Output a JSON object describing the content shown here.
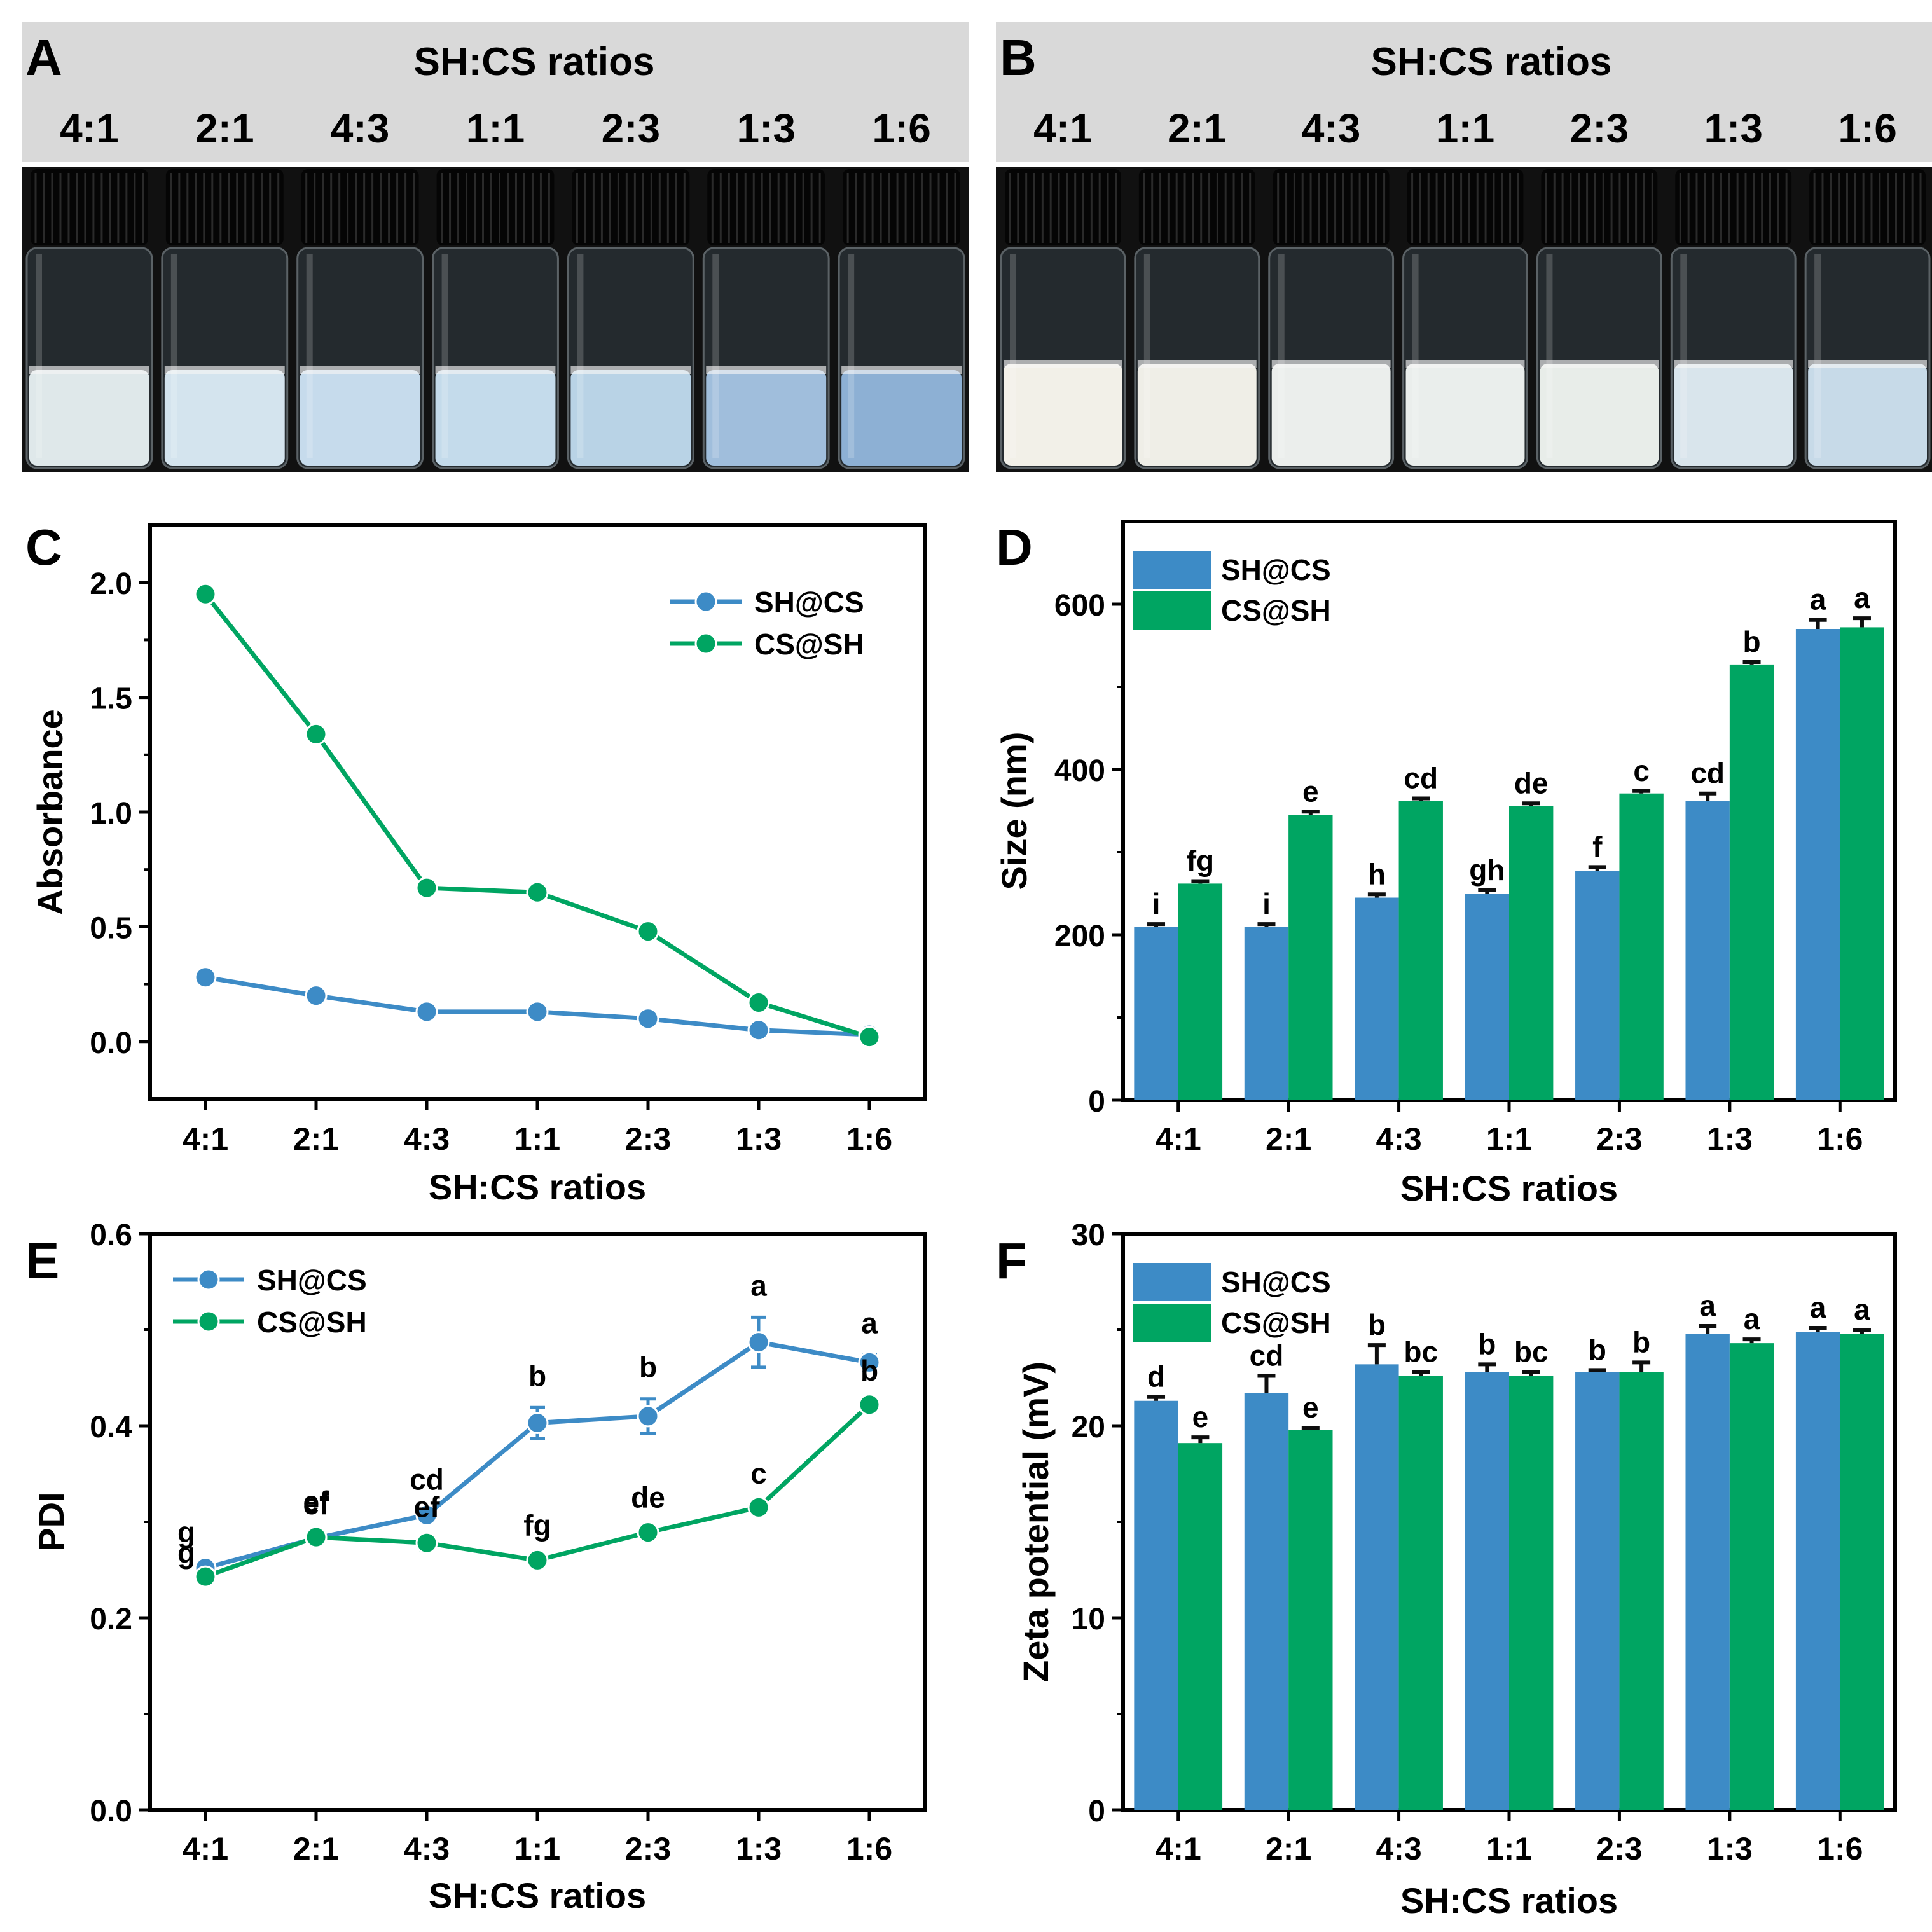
{
  "colors": {
    "sh_cs": "#3d8bc6",
    "cs_sh": "#00a562",
    "header_bg": "#d9d9d9",
    "axis": "#000000",
    "cap": "#0e0e0e"
  },
  "photo_panels": [
    {
      "letter": "A",
      "title": "SH:CS ratios",
      "ratios": [
        "4:1",
        "2:1",
        "4:3",
        "1:1",
        "2:3",
        "1:3",
        "1:6"
      ],
      "liquid_colors": [
        "#dfe8ea",
        "#d4e4ee",
        "#c6dbec",
        "#c4dbeb",
        "#b9d3e6",
        "#a0bedc",
        "#8db0d4"
      ]
    },
    {
      "letter": "B",
      "title": "SH:CS ratios",
      "ratios": [
        "4:1",
        "2:1",
        "4:3",
        "1:1",
        "2:3",
        "1:3",
        "1:6"
      ],
      "liquid_colors": [
        "#f2f0e8",
        "#efeee7",
        "#ebeeec",
        "#eaeeec",
        "#e8ede9",
        "#d9e5ec",
        "#c7dae8"
      ]
    }
  ],
  "chart_data": [
    {
      "panel": "C",
      "type": "line",
      "categories": [
        "4:1",
        "2:1",
        "4:3",
        "1:1",
        "2:3",
        "1:3",
        "1:6"
      ],
      "series": [
        {
          "name": "SH@CS",
          "values": [
            0.28,
            0.2,
            0.13,
            0.13,
            0.1,
            0.05,
            0.03
          ]
        },
        {
          "name": "CS@SH",
          "values": [
            1.95,
            1.34,
            0.67,
            0.65,
            0.48,
            0.17,
            0.02
          ]
        }
      ],
      "xlabel": "SH:CS ratios",
      "ylabel": "Absorbance",
      "ylim": [
        -0.25,
        2.25
      ],
      "yticks": [
        "0.0",
        "0.5",
        "1.0",
        "1.5",
        "2.0"
      ],
      "legend_position": "top-right"
    },
    {
      "panel": "D",
      "type": "bar",
      "categories": [
        "4:1",
        "2:1",
        "4:3",
        "1:1",
        "2:3",
        "1:3",
        "1:6"
      ],
      "series": [
        {
          "name": "SH@CS",
          "values": [
            210,
            210,
            245,
            250,
            277,
            362,
            570
          ],
          "errors": [
            3,
            3,
            4,
            4,
            5,
            9,
            11
          ],
          "letters": [
            "i",
            "i",
            "h",
            "gh",
            "f",
            "cd",
            "a"
          ]
        },
        {
          "name": "CS@SH",
          "values": [
            262,
            345,
            362,
            356,
            371,
            527,
            572
          ],
          "errors": [
            3,
            4,
            3,
            3,
            3,
            3,
            11
          ],
          "letters": [
            "fg",
            "e",
            "cd",
            "de",
            "c",
            "b",
            "a"
          ]
        }
      ],
      "xlabel": "SH:CS ratios",
      "ylabel": "Size (nm)",
      "ylim": [
        0,
        700
      ],
      "yticks": [
        "0",
        "200",
        "400",
        "600"
      ],
      "legend_position": "top-left"
    },
    {
      "panel": "E",
      "type": "line",
      "categories": [
        "4:1",
        "2:1",
        "4:3",
        "1:1",
        "2:3",
        "1:3",
        "1:6"
      ],
      "series": [
        {
          "name": "SH@CS",
          "values": [
            0.252,
            0.283,
            0.307,
            0.403,
            0.41,
            0.487,
            0.466
          ],
          "errors": [
            0.004,
            0.005,
            0.004,
            0.016,
            0.018,
            0.026,
            0.008
          ],
          "letters": [
            "g",
            "ef",
            "cd",
            "b",
            "b",
            "a",
            "a"
          ]
        },
        {
          "name": "CS@SH",
          "values": [
            0.243,
            0.284,
            0.278,
            0.26,
            0.289,
            0.315,
            0.422
          ],
          "errors": [
            0.006,
            0.004,
            0.007,
            0.006,
            0.006,
            0.005,
            0.005
          ],
          "letters": [
            "g",
            "ef",
            "ef",
            "fg",
            "de",
            "c",
            "b"
          ]
        }
      ],
      "xlabel": "SH:CS ratios",
      "ylabel": "PDI",
      "ylim": [
        0.0,
        0.6
      ],
      "yticks": [
        "0.0",
        "0.2",
        "0.4",
        "0.6"
      ],
      "legend_position": "top-left"
    },
    {
      "panel": "F",
      "type": "bar",
      "categories": [
        "4:1",
        "2:1",
        "4:3",
        "1:1",
        "2:3",
        "1:3",
        "1:6"
      ],
      "series": [
        {
          "name": "SH@CS",
          "values": [
            21.3,
            21.7,
            23.2,
            22.8,
            22.8,
            24.8,
            24.9
          ],
          "errors": [
            0.2,
            0.9,
            1.0,
            0.4,
            0.1,
            0.4,
            0.2
          ],
          "letters": [
            "d",
            "cd",
            "b",
            "b",
            "b",
            "a",
            "a"
          ]
        },
        {
          "name": "CS@SH",
          "values": [
            19.1,
            19.8,
            22.6,
            22.6,
            22.8,
            24.3,
            24.8
          ],
          "errors": [
            0.3,
            0.1,
            0.2,
            0.2,
            0.5,
            0.2,
            0.2
          ],
          "letters": [
            "e",
            "e",
            "bc",
            "bc",
            "b",
            "a",
            "a"
          ]
        }
      ],
      "xlabel": "SH:CS ratios",
      "ylabel": "Zeta potential (mV)",
      "ylim": [
        0,
        30
      ],
      "yticks": [
        "0",
        "10",
        "20",
        "30"
      ],
      "legend_position": "top-left"
    }
  ]
}
